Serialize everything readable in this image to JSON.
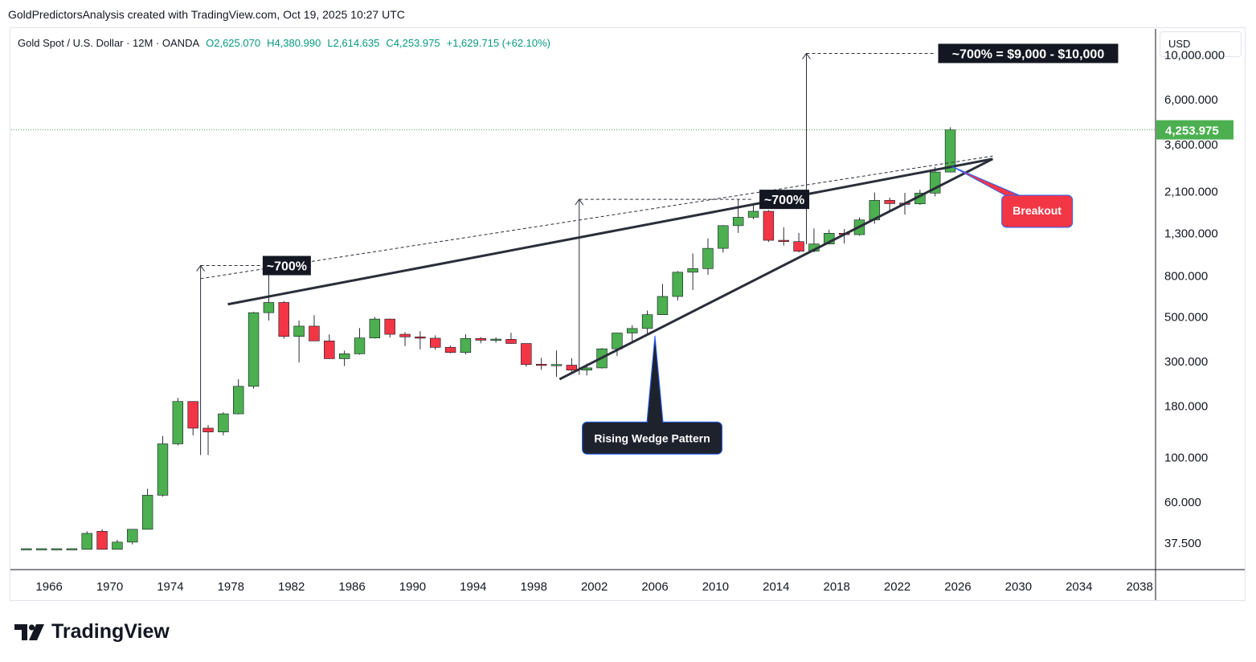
{
  "header": {
    "text": "GoldPredictorsAnalysis created with TradingView.com, Oct 19, 2025 10:27 UTC"
  },
  "legend": {
    "symbol": "Gold Spot / U.S. Dollar · 12M · OANDA",
    "open": "O2,625.070",
    "high": "H4,380.990",
    "low": "L2,614.635",
    "close": "C4,253.975",
    "change": "+1,629.715 (+62.10%)"
  },
  "currency": "USD",
  "brand": {
    "name": "TradingView"
  },
  "colors": {
    "up": "#4caf50",
    "down": "#f23645",
    "line": "#2a2e39",
    "price_tag": "#4caf50",
    "breakout_bubble": "#f23645",
    "wedge_bubble": "#1e222d"
  },
  "chart_data": {
    "type": "candlestick",
    "title": "Gold Spot / U.S. Dollar · 12M · OANDA",
    "y_scale": "log",
    "ylim": [
      28,
      13500
    ],
    "xlim": [
      1963.5,
      2039
    ],
    "x_ticks": [
      "1966",
      "1970",
      "1974",
      "1978",
      "1982",
      "1986",
      "1990",
      "1994",
      "1998",
      "2002",
      "2006",
      "2010",
      "2014",
      "2018",
      "2022",
      "2026",
      "2030",
      "2034",
      "2038"
    ],
    "y_ticks": [
      "10,000.000",
      "6,000.000",
      "3,600.000",
      "2,100.000",
      "1,300.000",
      "800.000",
      "500.000",
      "300.000",
      "180.000",
      "100.000",
      "60.000",
      "37.500"
    ],
    "last_price": "4,253.975",
    "candles": [
      {
        "year": 1964,
        "o": 35,
        "h": 35,
        "l": 35,
        "c": 35
      },
      {
        "year": 1965,
        "o": 35,
        "h": 35,
        "l": 35,
        "c": 35
      },
      {
        "year": 1966,
        "o": 35,
        "h": 35,
        "l": 35,
        "c": 35
      },
      {
        "year": 1967,
        "o": 35,
        "h": 35,
        "l": 35,
        "c": 35
      },
      {
        "year": 1968,
        "o": 35,
        "h": 43,
        "l": 35,
        "c": 42
      },
      {
        "year": 1969,
        "o": 43,
        "h": 44,
        "l": 35,
        "c": 35
      },
      {
        "year": 1970,
        "o": 35,
        "h": 39,
        "l": 35,
        "c": 38
      },
      {
        "year": 1971,
        "o": 38,
        "h": 44,
        "l": 37,
        "c": 44
      },
      {
        "year": 1972,
        "o": 44,
        "h": 70,
        "l": 44,
        "c": 65
      },
      {
        "year": 1973,
        "o": 65,
        "h": 128,
        "l": 64,
        "c": 117
      },
      {
        "year": 1974,
        "o": 117,
        "h": 198,
        "l": 115,
        "c": 190
      },
      {
        "year": 1975,
        "o": 190,
        "h": 190,
        "l": 129,
        "c": 140
      },
      {
        "year": 1976,
        "o": 140,
        "h": 145,
        "l": 103,
        "c": 134
      },
      {
        "year": 1977,
        "o": 134,
        "h": 168,
        "l": 129,
        "c": 165
      },
      {
        "year": 1978,
        "o": 165,
        "h": 245,
        "l": 164,
        "c": 226
      },
      {
        "year": 1979,
        "o": 226,
        "h": 530,
        "l": 220,
        "c": 525
      },
      {
        "year": 1980,
        "o": 525,
        "h": 850,
        "l": 480,
        "c": 590
      },
      {
        "year": 1981,
        "o": 590,
        "h": 600,
        "l": 390,
        "c": 400
      },
      {
        "year": 1982,
        "o": 400,
        "h": 480,
        "l": 297,
        "c": 450
      },
      {
        "year": 1983,
        "o": 450,
        "h": 510,
        "l": 380,
        "c": 380
      },
      {
        "year": 1984,
        "o": 380,
        "h": 410,
        "l": 310,
        "c": 310
      },
      {
        "year": 1985,
        "o": 310,
        "h": 340,
        "l": 285,
        "c": 328
      },
      {
        "year": 1986,
        "o": 328,
        "h": 440,
        "l": 325,
        "c": 393
      },
      {
        "year": 1987,
        "o": 393,
        "h": 500,
        "l": 390,
        "c": 488
      },
      {
        "year": 1988,
        "o": 488,
        "h": 490,
        "l": 395,
        "c": 410
      },
      {
        "year": 1989,
        "o": 410,
        "h": 420,
        "l": 358,
        "c": 398
      },
      {
        "year": 1990,
        "o": 398,
        "h": 425,
        "l": 345,
        "c": 392
      },
      {
        "year": 1991,
        "o": 392,
        "h": 405,
        "l": 344,
        "c": 353
      },
      {
        "year": 1992,
        "o": 353,
        "h": 360,
        "l": 330,
        "c": 333
      },
      {
        "year": 1993,
        "o": 333,
        "h": 410,
        "l": 326,
        "c": 391
      },
      {
        "year": 1994,
        "o": 391,
        "h": 397,
        "l": 370,
        "c": 383
      },
      {
        "year": 1995,
        "o": 383,
        "h": 396,
        "l": 372,
        "c": 387
      },
      {
        "year": 1996,
        "o": 387,
        "h": 417,
        "l": 367,
        "c": 369
      },
      {
        "year": 1997,
        "o": 369,
        "h": 369,
        "l": 283,
        "c": 290
      },
      {
        "year": 1998,
        "o": 290,
        "h": 313,
        "l": 273,
        "c": 288
      },
      {
        "year": 1999,
        "o": 288,
        "h": 340,
        "l": 252,
        "c": 288
      },
      {
        "year": 2000,
        "o": 288,
        "h": 312,
        "l": 264,
        "c": 272
      },
      {
        "year": 2001,
        "o": 272,
        "h": 293,
        "l": 256,
        "c": 279
      },
      {
        "year": 2002,
        "o": 279,
        "h": 350,
        "l": 277,
        "c": 347
      },
      {
        "year": 2003,
        "o": 347,
        "h": 417,
        "l": 320,
        "c": 416
      },
      {
        "year": 2004,
        "o": 416,
        "h": 455,
        "l": 375,
        "c": 438
      },
      {
        "year": 2005,
        "o": 438,
        "h": 538,
        "l": 411,
        "c": 513
      },
      {
        "year": 2006,
        "o": 513,
        "h": 730,
        "l": 513,
        "c": 632
      },
      {
        "year": 2007,
        "o": 632,
        "h": 845,
        "l": 603,
        "c": 834
      },
      {
        "year": 2008,
        "o": 834,
        "h": 1033,
        "l": 681,
        "c": 869
      },
      {
        "year": 2009,
        "o": 869,
        "h": 1226,
        "l": 810,
        "c": 1096
      },
      {
        "year": 2010,
        "o": 1096,
        "h": 1431,
        "l": 1044,
        "c": 1421
      },
      {
        "year": 2011,
        "o": 1421,
        "h": 1920,
        "l": 1308,
        "c": 1564
      },
      {
        "year": 2012,
        "o": 1564,
        "h": 1796,
        "l": 1527,
        "c": 1675
      },
      {
        "year": 2013,
        "o": 1675,
        "h": 1696,
        "l": 1180,
        "c": 1202
      },
      {
        "year": 2014,
        "o": 1202,
        "h": 1392,
        "l": 1131,
        "c": 1184
      },
      {
        "year": 2015,
        "o": 1184,
        "h": 1307,
        "l": 1046,
        "c": 1061
      },
      {
        "year": 2016,
        "o": 1061,
        "h": 1375,
        "l": 1046,
        "c": 1152
      },
      {
        "year": 2017,
        "o": 1152,
        "h": 1357,
        "l": 1146,
        "c": 1303
      },
      {
        "year": 2018,
        "o": 1303,
        "h": 1366,
        "l": 1160,
        "c": 1282
      },
      {
        "year": 2019,
        "o": 1282,
        "h": 1557,
        "l": 1266,
        "c": 1517
      },
      {
        "year": 2020,
        "o": 1517,
        "h": 2075,
        "l": 1451,
        "c": 1898
      },
      {
        "year": 2021,
        "o": 1898,
        "h": 1959,
        "l": 1677,
        "c": 1829
      },
      {
        "year": 2022,
        "o": 1829,
        "h": 2070,
        "l": 1614,
        "c": 1824
      },
      {
        "year": 2023,
        "o": 1824,
        "h": 2146,
        "l": 1804,
        "c": 2062
      },
      {
        "year": 2024,
        "o": 2062,
        "h": 2790,
        "l": 1984,
        "c": 2625
      },
      {
        "year": 2025,
        "o": 2625.07,
        "h": 4380.99,
        "l": 2614.635,
        "c": 4253.975
      }
    ],
    "annotations": {
      "label_1": "~700%",
      "label_2": "~700%",
      "label_3": "~700% = $9,000 - $10,000",
      "breakout": "Breakout",
      "wedge": "Rising Wedge Pattern"
    }
  }
}
